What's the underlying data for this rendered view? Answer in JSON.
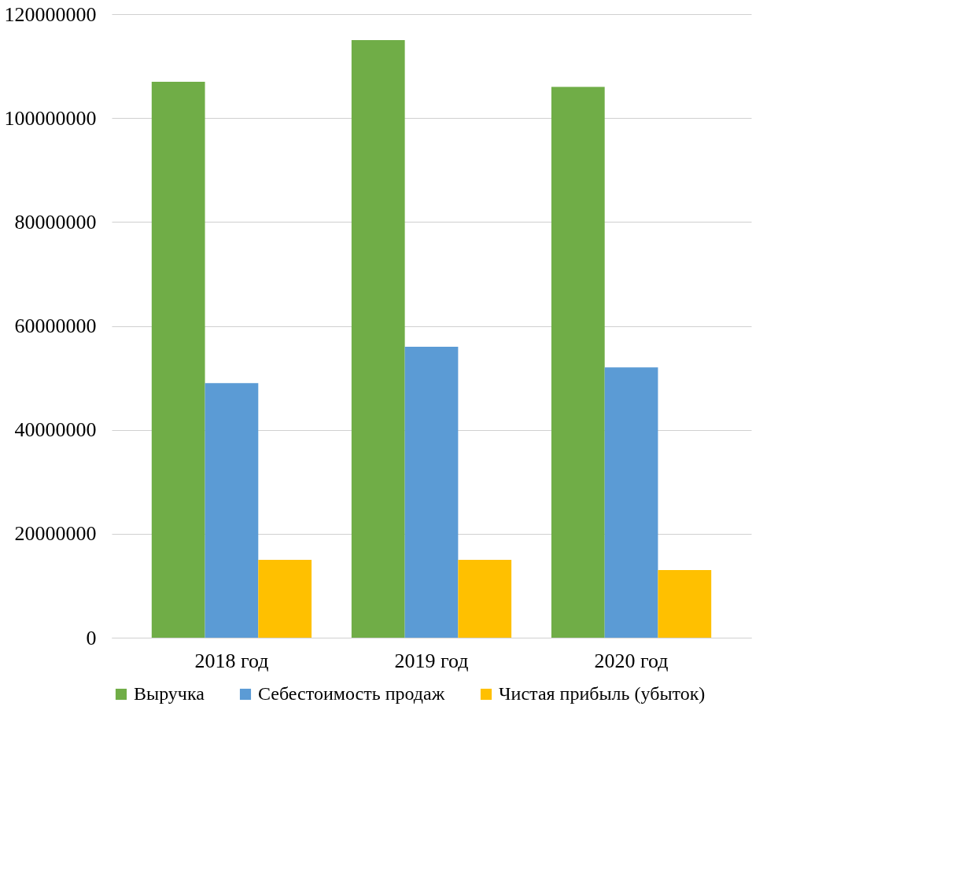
{
  "chart_data": {
    "type": "bar",
    "categories": [
      "2018 год",
      "2019  год",
      "2020 год"
    ],
    "series": [
      {
        "name": "Выручка",
        "color": "#70ad47",
        "values": [
          107000000,
          115000000,
          106000000
        ]
      },
      {
        "name": "Себестоимость продаж",
        "color": "#5b9bd5",
        "values": [
          49000000,
          56000000,
          52000000
        ]
      },
      {
        "name": "Чистая прибыль (убыток)",
        "color": "#ffc000",
        "values": [
          15000000,
          15000000,
          13000000
        ]
      }
    ],
    "ylim": [
      0,
      120000000
    ],
    "yticks": [
      0,
      20000000,
      40000000,
      60000000,
      80000000,
      100000000,
      120000000
    ],
    "grid": "y",
    "legend": "bottom"
  }
}
